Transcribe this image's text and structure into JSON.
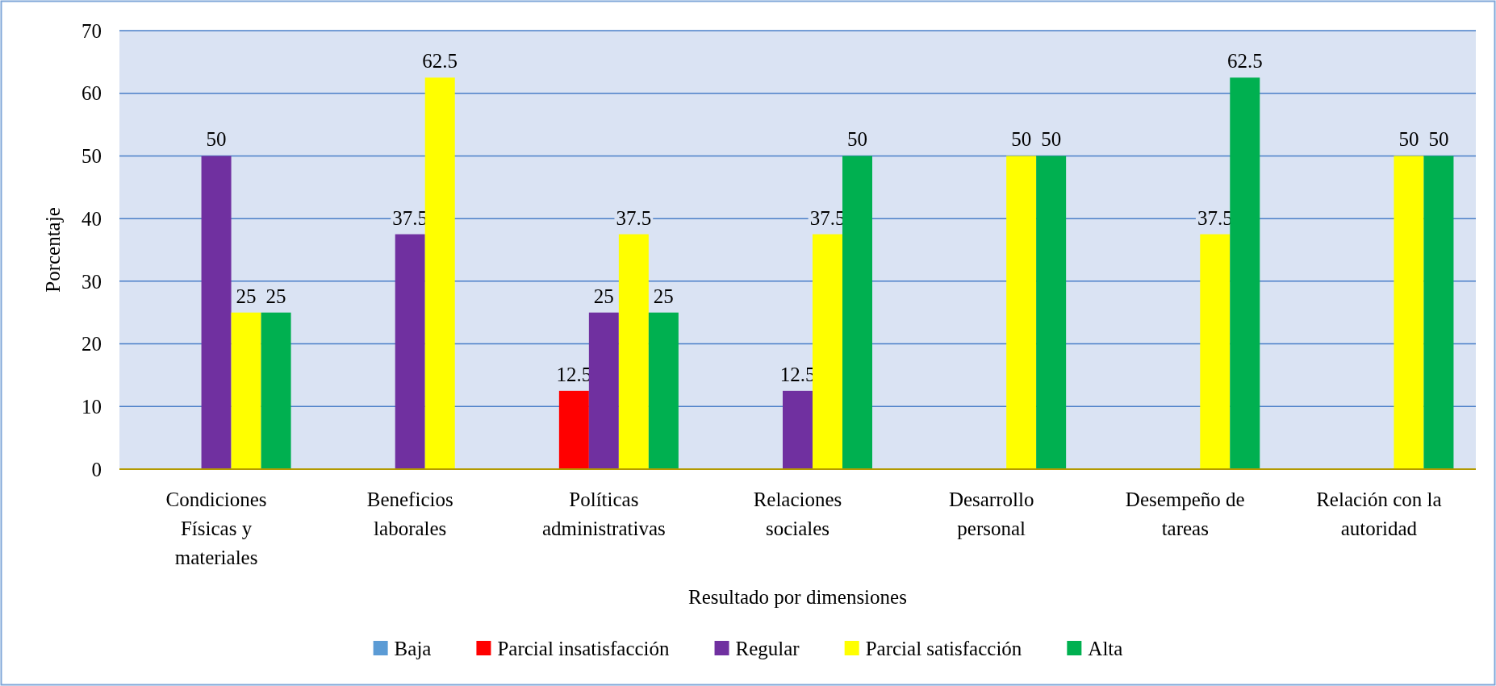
{
  "chart_data": {
    "type": "bar",
    "xlabel": "Resultado por dimensiones",
    "ylabel": "Porcentaje",
    "categories": [
      "Condiciones Físicas y materiales",
      "Beneficios laborales",
      "Políticas administrativas",
      "Relaciones sociales",
      "Desarrollo personal",
      "Desempeño de tareas",
      "Relación con la autoridad"
    ],
    "series": [
      {
        "name": "Baja",
        "color": "#5b9bd5",
        "values": [
          0,
          0,
          0,
          0,
          0,
          0,
          0
        ],
        "value_labels": [
          null,
          null,
          null,
          null,
          null,
          null,
          null
        ]
      },
      {
        "name": "Parcial insatisfacción",
        "color": "#ff0000",
        "values": [
          0,
          0,
          12.5,
          0,
          0,
          0,
          0
        ],
        "value_labels": [
          null,
          null,
          "12.5",
          null,
          null,
          null,
          null
        ]
      },
      {
        "name": "Regular",
        "color": "#7030a0",
        "values": [
          50,
          37.5,
          25,
          12.5,
          0,
          0,
          0
        ],
        "value_labels": [
          "50",
          "37.5",
          "25",
          "12.5",
          null,
          null,
          null
        ]
      },
      {
        "name": "Parcial satisfacción",
        "color": "#ffff00",
        "values": [
          25,
          62.5,
          37.5,
          37.5,
          50,
          37.5,
          50
        ],
        "value_labels": [
          "25",
          "62.5",
          "37.5",
          "37.5",
          "50",
          "37.5",
          "50"
        ]
      },
      {
        "name": "Alta",
        "color": "#00b050",
        "values": [
          25,
          0,
          25,
          50,
          50,
          62.5,
          50
        ],
        "value_labels": [
          "25",
          null,
          "25",
          "50",
          "50",
          "62.5",
          "50"
        ]
      }
    ],
    "ylim": [
      0,
      70
    ],
    "yticks": [
      0,
      10,
      20,
      30,
      40,
      50,
      60,
      70
    ],
    "grid": "y",
    "legend": "bottom"
  }
}
